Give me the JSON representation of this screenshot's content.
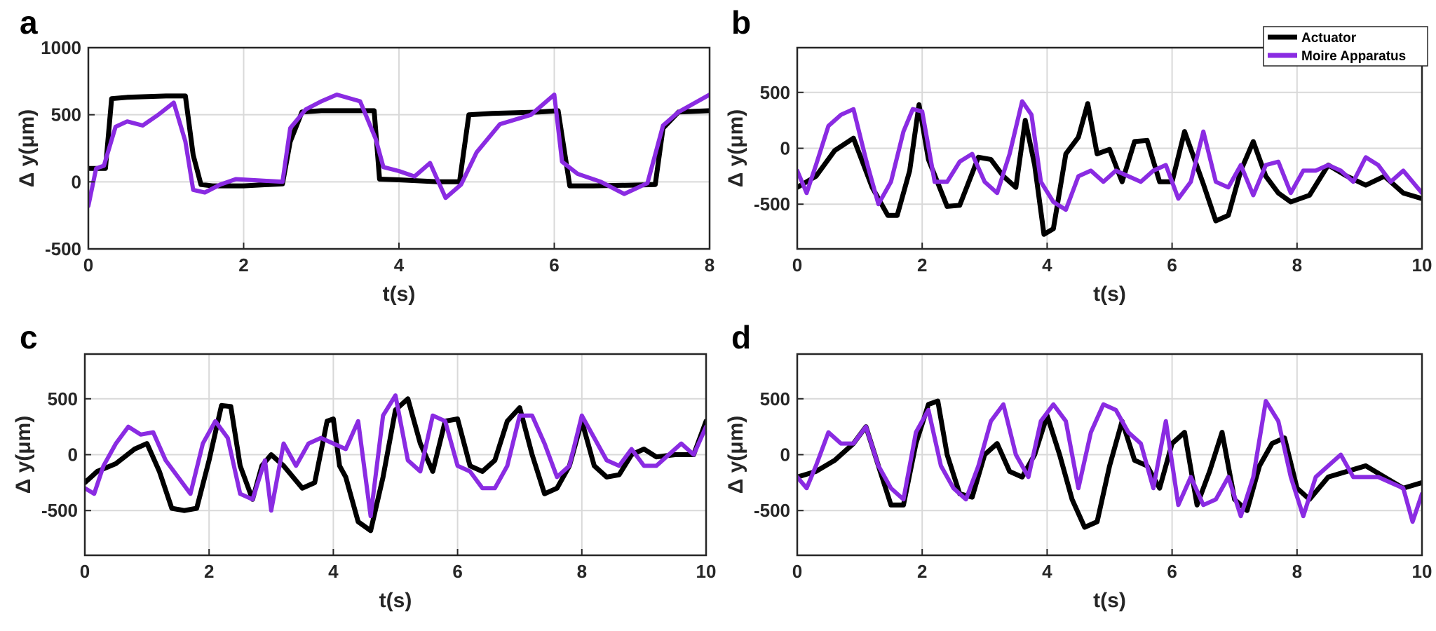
{
  "colors": {
    "actuator": "#000000",
    "moire": "#8a2be2",
    "grid": "#d9d9d9",
    "axis": "#262626"
  },
  "legend": {
    "placement": "top-right",
    "entries": [
      {
        "label": "Actuator",
        "color": "#000000"
      },
      {
        "label": "Moire Apparatus",
        "color": "#8a2be2"
      }
    ]
  },
  "chart_data": [
    {
      "panel": "a",
      "type": "line",
      "xlabel": "t(s)",
      "ylabel": "Δ y(μm)",
      "xlim": [
        0,
        8
      ],
      "ylim": [
        -500,
        1000
      ],
      "xticks": [
        0,
        2,
        4,
        6,
        8
      ],
      "yticks": [
        -500,
        0,
        500,
        1000
      ],
      "grid": true,
      "series": [
        {
          "name": "Actuator",
          "x": [
            0,
            0.22,
            0.3,
            0.5,
            1.0,
            1.25,
            1.35,
            1.45,
            1.6,
            2.0,
            2.5,
            2.6,
            2.75,
            3.0,
            3.5,
            3.68,
            3.75,
            4.0,
            4.5,
            4.78,
            4.9,
            5.2,
            5.8,
            6.05,
            6.2,
            6.5,
            7.0,
            7.3,
            7.4,
            7.6,
            8.0
          ],
          "y": [
            100,
            100,
            620,
            630,
            640,
            640,
            200,
            -20,
            -30,
            -30,
            -15,
            300,
            520,
            530,
            530,
            530,
            20,
            15,
            0,
            0,
            500,
            510,
            520,
            530,
            -30,
            -30,
            -25,
            -20,
            400,
            520,
            530
          ]
        },
        {
          "name": "Moire Apparatus",
          "x": [
            0,
            0.1,
            0.2,
            0.35,
            0.5,
            0.7,
            0.9,
            1.1,
            1.25,
            1.35,
            1.5,
            1.7,
            1.9,
            2.2,
            2.5,
            2.6,
            2.8,
            3.0,
            3.2,
            3.5,
            3.7,
            3.8,
            4.0,
            4.2,
            4.4,
            4.6,
            4.8,
            5.0,
            5.3,
            5.7,
            6.0,
            6.1,
            6.3,
            6.6,
            6.9,
            7.2,
            7.4,
            7.6,
            8.0
          ],
          "y": [
            -180,
            100,
            120,
            410,
            450,
            420,
            500,
            590,
            300,
            -60,
            -80,
            -20,
            20,
            10,
            0,
            400,
            540,
            600,
            650,
            600,
            320,
            110,
            80,
            40,
            140,
            -120,
            -20,
            220,
            430,
            500,
            650,
            150,
            60,
            0,
            -90,
            -10,
            420,
            520,
            650
          ]
        }
      ]
    },
    {
      "panel": "b",
      "type": "line",
      "xlabel": "t(s)",
      "ylabel": "Δ y(μm)",
      "xlim": [
        0,
        10
      ],
      "ylim": [
        -900,
        900
      ],
      "xticks": [
        0,
        2,
        4,
        6,
        8,
        10
      ],
      "yticks": [
        -500,
        0,
        500
      ],
      "grid": true,
      "series": [
        {
          "name": "Actuator",
          "x": [
            0,
            0.3,
            0.6,
            0.9,
            1.2,
            1.45,
            1.6,
            1.8,
            1.95,
            2.1,
            2.4,
            2.6,
            2.9,
            3.1,
            3.3,
            3.5,
            3.65,
            3.8,
            3.95,
            4.1,
            4.3,
            4.5,
            4.65,
            4.8,
            5.0,
            5.2,
            5.4,
            5.6,
            5.8,
            6.0,
            6.2,
            6.5,
            6.7,
            6.9,
            7.1,
            7.3,
            7.5,
            7.7,
            7.9,
            8.2,
            8.5,
            8.8,
            9.1,
            9.4,
            9.7,
            10.0
          ],
          "y": [
            -350,
            -250,
            -20,
            90,
            -350,
            -600,
            -600,
            -200,
            390,
            -100,
            -520,
            -510,
            -80,
            -100,
            -250,
            -350,
            250,
            -150,
            -770,
            -720,
            -50,
            100,
            400,
            -50,
            -10,
            -300,
            60,
            70,
            -300,
            -300,
            150,
            -320,
            -650,
            -600,
            -200,
            60,
            -250,
            -400,
            -480,
            -420,
            -150,
            -250,
            -330,
            -250,
            -400,
            -450
          ]
        },
        {
          "name": "Moire Apparatus",
          "x": [
            0,
            0.15,
            0.3,
            0.5,
            0.7,
            0.9,
            1.1,
            1.3,
            1.5,
            1.7,
            1.85,
            2.0,
            2.2,
            2.4,
            2.6,
            2.8,
            3.0,
            3.2,
            3.4,
            3.6,
            3.75,
            3.9,
            4.1,
            4.3,
            4.5,
            4.7,
            4.9,
            5.1,
            5.3,
            5.5,
            5.7,
            5.9,
            6.1,
            6.3,
            6.5,
            6.7,
            6.9,
            7.1,
            7.3,
            7.5,
            7.7,
            7.9,
            8.1,
            8.3,
            8.5,
            8.7,
            8.9,
            9.1,
            9.3,
            9.5,
            9.7,
            10.0
          ],
          "y": [
            -200,
            -400,
            -150,
            200,
            300,
            350,
            -100,
            -500,
            -300,
            150,
            350,
            330,
            -300,
            -300,
            -120,
            -50,
            -300,
            -400,
            -50,
            420,
            300,
            -300,
            -480,
            -550,
            -250,
            -200,
            -300,
            -200,
            -250,
            -300,
            -200,
            -150,
            -450,
            -300,
            150,
            -300,
            -350,
            -150,
            -420,
            -150,
            -120,
            -400,
            -200,
            -200,
            -150,
            -200,
            -300,
            -80,
            -150,
            -300,
            -200,
            -400
          ]
        }
      ]
    },
    {
      "panel": "c",
      "type": "line",
      "xlabel": "t(s)",
      "ylabel": "Δ y(μm)",
      "xlim": [
        0,
        10
      ],
      "ylim": [
        -900,
        900
      ],
      "xticks": [
        0,
        2,
        4,
        6,
        8,
        10
      ],
      "yticks": [
        -500,
        0,
        500
      ],
      "grid": true,
      "series": [
        {
          "name": "Actuator",
          "x": [
            0,
            0.2,
            0.5,
            0.8,
            1.0,
            1.2,
            1.4,
            1.6,
            1.8,
            2.0,
            2.2,
            2.35,
            2.5,
            2.7,
            2.85,
            3.0,
            3.2,
            3.5,
            3.7,
            3.9,
            4.0,
            4.1,
            4.2,
            4.4,
            4.6,
            4.8,
            5.0,
            5.2,
            5.4,
            5.6,
            5.8,
            6.0,
            6.2,
            6.4,
            6.6,
            6.8,
            7.0,
            7.2,
            7.4,
            7.6,
            7.8,
            8.0,
            8.2,
            8.4,
            8.6,
            8.8,
            9.0,
            9.2,
            9.5,
            9.8,
            10.0
          ],
          "y": [
            -250,
            -150,
            -80,
            50,
            100,
            -150,
            -480,
            -500,
            -480,
            -50,
            440,
            430,
            -100,
            -400,
            -100,
            0,
            -100,
            -300,
            -250,
            300,
            320,
            -100,
            -200,
            -600,
            -680,
            -200,
            400,
            500,
            100,
            -150,
            300,
            320,
            -100,
            -150,
            -50,
            300,
            420,
            0,
            -350,
            -300,
            -100,
            300,
            -100,
            -200,
            -180,
            0,
            50,
            -20,
            0,
            0,
            300
          ]
        },
        {
          "name": "Moire Apparatus",
          "x": [
            0,
            0.15,
            0.3,
            0.5,
            0.7,
            0.9,
            1.1,
            1.3,
            1.5,
            1.7,
            1.9,
            2.1,
            2.3,
            2.5,
            2.7,
            2.9,
            3.0,
            3.2,
            3.4,
            3.6,
            3.8,
            4.0,
            4.2,
            4.4,
            4.6,
            4.8,
            5.0,
            5.2,
            5.4,
            5.6,
            5.8,
            6.0,
            6.2,
            6.4,
            6.6,
            6.8,
            7.0,
            7.2,
            7.4,
            7.6,
            7.8,
            8.0,
            8.2,
            8.4,
            8.6,
            8.8,
            9.0,
            9.2,
            9.4,
            9.6,
            9.8,
            10.0
          ],
          "y": [
            -300,
            -350,
            -100,
            100,
            250,
            180,
            200,
            -50,
            -200,
            -350,
            100,
            300,
            150,
            -350,
            -400,
            -50,
            -500,
            100,
            -100,
            100,
            150,
            100,
            50,
            300,
            -550,
            350,
            530,
            -50,
            -150,
            350,
            300,
            -100,
            -150,
            -300,
            -300,
            -100,
            350,
            350,
            100,
            -200,
            -100,
            350,
            150,
            -50,
            -100,
            50,
            -100,
            -100,
            0,
            100,
            0,
            250
          ]
        }
      ]
    },
    {
      "panel": "d",
      "type": "line",
      "xlabel": "t(s)",
      "ylabel": "Δ y(μm)",
      "xlim": [
        0,
        10
      ],
      "ylim": [
        -900,
        900
      ],
      "xticks": [
        0,
        2,
        4,
        6,
        8,
        10
      ],
      "yticks": [
        -500,
        0,
        500
      ],
      "grid": true,
      "series": [
        {
          "name": "Actuator",
          "x": [
            0,
            0.3,
            0.6,
            0.9,
            1.1,
            1.3,
            1.5,
            1.7,
            1.9,
            2.1,
            2.25,
            2.4,
            2.6,
            2.8,
            3.0,
            3.2,
            3.4,
            3.6,
            3.8,
            4.0,
            4.2,
            4.4,
            4.6,
            4.8,
            5.0,
            5.2,
            5.4,
            5.6,
            5.8,
            6.0,
            6.2,
            6.4,
            6.6,
            6.8,
            7.0,
            7.2,
            7.4,
            7.6,
            7.8,
            8.0,
            8.2,
            8.5,
            8.8,
            9.1,
            9.4,
            9.7,
            10.0
          ],
          "y": [
            -200,
            -150,
            -50,
            100,
            250,
            -100,
            -450,
            -450,
            100,
            450,
            480,
            0,
            -350,
            -380,
            0,
            100,
            -150,
            -200,
            0,
            350,
            0,
            -400,
            -650,
            -600,
            -100,
            300,
            -50,
            -100,
            -300,
            100,
            200,
            -450,
            -150,
            200,
            -400,
            -500,
            -100,
            100,
            150,
            -300,
            -400,
            -200,
            -150,
            -100,
            -200,
            -300,
            -250
          ]
        },
        {
          "name": "Moire Apparatus",
          "x": [
            0,
            0.15,
            0.3,
            0.5,
            0.7,
            0.9,
            1.1,
            1.3,
            1.5,
            1.7,
            1.9,
            2.1,
            2.3,
            2.5,
            2.7,
            2.9,
            3.1,
            3.3,
            3.5,
            3.7,
            3.9,
            4.1,
            4.3,
            4.5,
            4.7,
            4.9,
            5.1,
            5.3,
            5.5,
            5.7,
            5.9,
            6.1,
            6.3,
            6.5,
            6.7,
            6.9,
            7.1,
            7.3,
            7.5,
            7.7,
            7.9,
            8.1,
            8.3,
            8.5,
            8.7,
            8.9,
            9.1,
            9.3,
            9.5,
            9.7,
            9.85,
            10.0
          ],
          "y": [
            -200,
            -300,
            -100,
            200,
            100,
            100,
            250,
            -100,
            -300,
            -400,
            200,
            400,
            -100,
            -300,
            -400,
            -100,
            300,
            450,
            0,
            -200,
            300,
            450,
            300,
            -300,
            200,
            450,
            400,
            200,
            100,
            -300,
            300,
            -450,
            -200,
            -450,
            -400,
            -200,
            -550,
            -200,
            480,
            300,
            -200,
            -550,
            -200,
            -100,
            0,
            -200,
            -200,
            -200,
            -250,
            -300,
            -600,
            -350
          ]
        }
      ]
    }
  ]
}
